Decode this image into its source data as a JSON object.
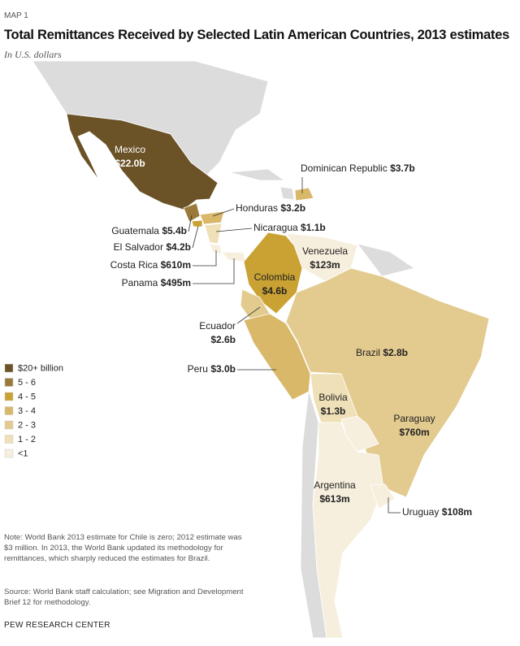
{
  "header": {
    "kicker": "MAP 1",
    "title": "Total Remittances Received by Selected Latin American Countries, 2013 estimates",
    "subtitle": "In U.S. dollars"
  },
  "legend": [
    {
      "label": "$20+ billion",
      "color": "#6b5227"
    },
    {
      "label": "5 - 6",
      "color": "#9a7a3a"
    },
    {
      "label": "4 - 5",
      "color": "#c9a233"
    },
    {
      "label": "3 - 4",
      "color": "#d9b86a"
    },
    {
      "label": "2 - 3",
      "color": "#e3cb8f"
    },
    {
      "label": "1 - 2",
      "color": "#efe0b8"
    },
    {
      "label": "<1",
      "color": "#f7efde"
    }
  ],
  "countries": [
    {
      "name": "Mexico",
      "value": "$22.0b",
      "legend": 0
    },
    {
      "name": "Dominican Republic",
      "value": "$3.7b",
      "legend": 3
    },
    {
      "name": "Honduras",
      "value": "$3.2b",
      "legend": 3
    },
    {
      "name": "Nicaragua",
      "value": "$1.1b",
      "legend": 5
    },
    {
      "name": "Guatemala",
      "value": "$5.4b",
      "legend": 1
    },
    {
      "name": "El Salvador",
      "value": "$4.2b",
      "legend": 2
    },
    {
      "name": "Costa Rica",
      "value": "$610m",
      "legend": 6
    },
    {
      "name": "Panama",
      "value": "$495m",
      "legend": 6
    },
    {
      "name": "Venezuela",
      "value": "$123m",
      "legend": 6
    },
    {
      "name": "Colombia",
      "value": "$4.6b",
      "legend": 2
    },
    {
      "name": "Ecuador",
      "value": "$2.6b",
      "legend": 4
    },
    {
      "name": "Brazil",
      "value": "$2.8b",
      "legend": 4
    },
    {
      "name": "Peru",
      "value": "$3.0b",
      "legend": 3
    },
    {
      "name": "Bolivia",
      "value": "$1.3b",
      "legend": 5
    },
    {
      "name": "Paraguay",
      "value": "$760m",
      "legend": 6
    },
    {
      "name": "Argentina",
      "value": "$613m",
      "legend": 6
    },
    {
      "name": "Uruguay",
      "value": "$108m",
      "legend": 6
    }
  ],
  "note": "Note: World Bank 2013 estimate for Chile is zero; 2012 estimate was $3 million. In 2013, the World Bank updated its methodology for remittances, which sharply reduced the estimates for Brazil.",
  "source": "Source: World Bank staff calculation; see Migration and Development Brief 12 for methodology.",
  "footer": "PEW RESEARCH CENTER"
}
